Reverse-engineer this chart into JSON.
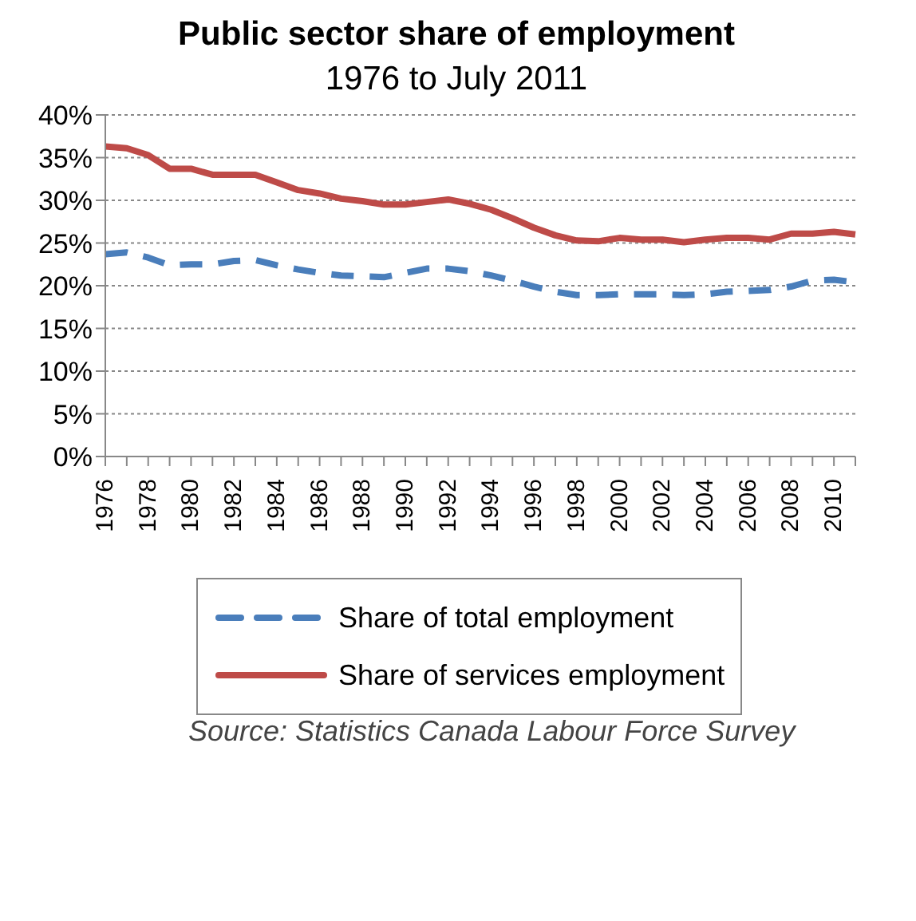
{
  "chart_data": {
    "type": "line",
    "title": "Public sector share of employment",
    "subtitle": "1976 to July 2011",
    "categories": [
      "1976",
      null,
      "1978",
      null,
      "1980",
      null,
      "1982",
      null,
      "1984",
      null,
      "1986",
      null,
      "1988",
      null,
      "1990",
      null,
      "1992",
      null,
      "1994",
      null,
      "1996",
      null,
      "1998",
      null,
      "2000",
      null,
      "2002",
      null,
      "2004",
      null,
      "2006",
      null,
      "2008",
      null,
      "2010",
      null
    ],
    "series": [
      {
        "name": "Share of total employment",
        "color": "#4a7ebb",
        "line_style": "dashed",
        "values": [
          23.7,
          23.9,
          23.3,
          22.4,
          22.5,
          22.5,
          22.9,
          23.0,
          22.4,
          21.9,
          21.5,
          21.2,
          21.1,
          21.0,
          21.5,
          22.0,
          22.0,
          21.7,
          21.2,
          20.6,
          19.9,
          19.3,
          18.9,
          18.9,
          19.0,
          19.0,
          19.0,
          18.9,
          19.0,
          19.3,
          19.4,
          19.5,
          19.9,
          20.6,
          20.7,
          20.4
        ]
      },
      {
        "name": "Share of services employment",
        "color": "#be4b48",
        "line_style": "solid",
        "values": [
          36.3,
          36.1,
          35.3,
          33.7,
          33.7,
          33.0,
          33.0,
          33.0,
          32.1,
          31.2,
          30.8,
          30.2,
          29.9,
          29.5,
          29.5,
          29.8,
          30.1,
          29.6,
          28.9,
          27.9,
          26.8,
          25.9,
          25.3,
          25.2,
          25.6,
          25.4,
          25.4,
          25.1,
          25.4,
          25.6,
          25.6,
          25.4,
          26.1,
          26.1,
          26.3,
          26.0
        ]
      }
    ],
    "ylim": [
      0,
      40
    ],
    "yticks": [
      {
        "value": 0,
        "label": "0%"
      },
      {
        "value": 5,
        "label": "5%"
      },
      {
        "value": 10,
        "label": "10%"
      },
      {
        "value": 15,
        "label": "15%"
      },
      {
        "value": 20,
        "label": "20%"
      },
      {
        "value": 25,
        "label": "25%"
      },
      {
        "value": 30,
        "label": "30%"
      },
      {
        "value": 35,
        "label": "35%"
      },
      {
        "value": 40,
        "label": "40%"
      }
    ],
    "grid": "y",
    "legend": "bottom",
    "marker": "none",
    "annotations": [
      "Source: Statistics Canada Labour Force Survey"
    ]
  }
}
